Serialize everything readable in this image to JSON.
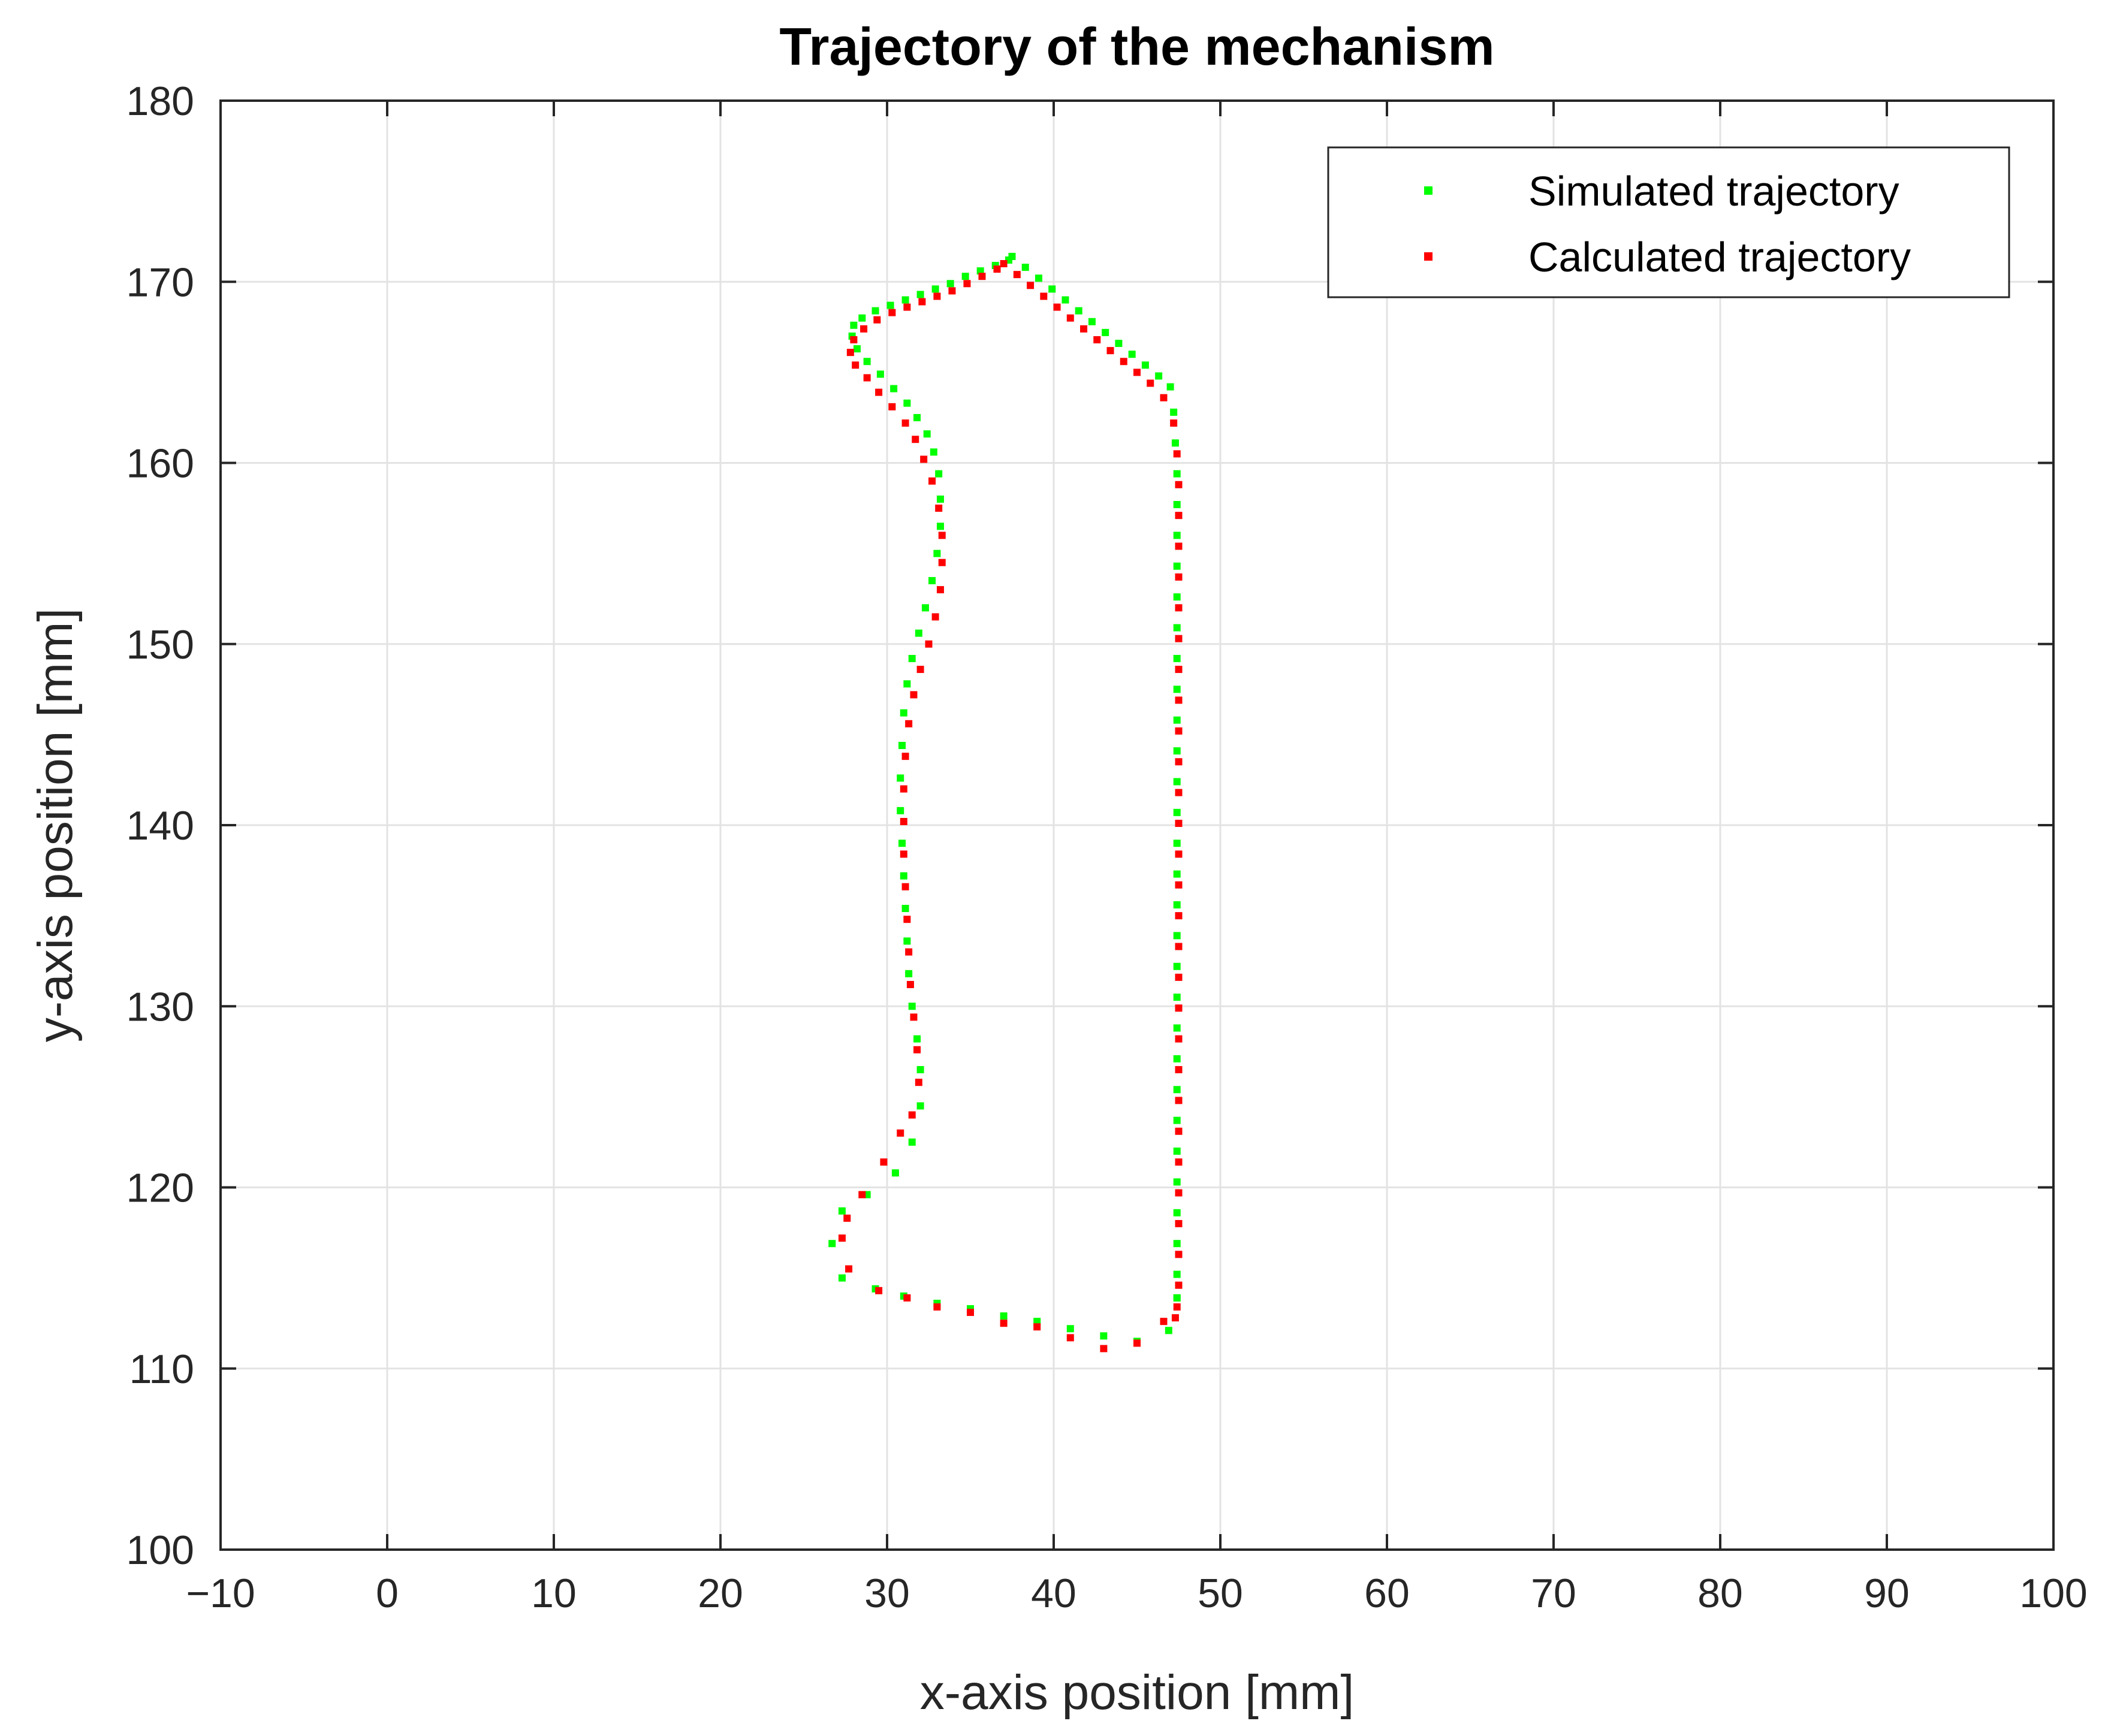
{
  "chart_data": {
    "type": "scatter",
    "title": "Trajectory of the mechanism",
    "xlabel": "x-axis position [mm]",
    "ylabel": "y-axis position [mm]",
    "xlim": [
      -10,
      100
    ],
    "ylim": [
      100,
      180
    ],
    "xticks": [
      -10,
      0,
      10,
      20,
      30,
      40,
      50,
      60,
      70,
      80,
      90,
      100
    ],
    "yticks": [
      100,
      110,
      120,
      130,
      140,
      150,
      160,
      170,
      180
    ],
    "xtick_labels": [
      "−10",
      "0",
      "10",
      "20",
      "30",
      "40",
      "50",
      "60",
      "70",
      "80",
      "90",
      "100"
    ],
    "ytick_labels": [
      "100",
      "110",
      "120",
      "130",
      "140",
      "150",
      "160",
      "170",
      "180"
    ],
    "grid": true,
    "legend_position": "top-right",
    "series": [
      {
        "name": "Simulated trajectory",
        "color": "#00ff00",
        "x": [
          37.5,
          38.3,
          39.1,
          39.9,
          40.7,
          41.5,
          42.3,
          43.1,
          43.9,
          44.7,
          45.5,
          46.3,
          47.0,
          47.2,
          47.3,
          47.4,
          47.4,
          47.4,
          47.4,
          47.4,
          47.4,
          47.4,
          47.4,
          47.4,
          47.4,
          47.4,
          47.4,
          47.4,
          47.4,
          47.4,
          47.4,
          47.4,
          47.4,
          47.4,
          47.4,
          47.4,
          47.4,
          47.4,
          47.4,
          47.4,
          47.4,
          47.4,
          47.4,
          47.4,
          46.9,
          45.0,
          43.0,
          41.0,
          39.0,
          37.0,
          35.0,
          33.0,
          31.0,
          29.3,
          27.3,
          26.7,
          27.3,
          28.8,
          30.5,
          31.5,
          32.0,
          32.0,
          31.8,
          31.5,
          31.3,
          31.2,
          31.1,
          31.0,
          30.9,
          30.8,
          30.8,
          30.9,
          31.0,
          31.2,
          31.5,
          31.9,
          32.3,
          32.7,
          33.0,
          33.2,
          33.2,
          33.1,
          32.8,
          32.4,
          31.8,
          31.2,
          30.4,
          29.6,
          28.8,
          28.2,
          27.9,
          28.0,
          28.5,
          29.3,
          30.2,
          31.1,
          32.0,
          32.9,
          33.8,
          34.7,
          35.6,
          36.5,
          37.3
        ],
        "y": [
          171.4,
          170.8,
          170.2,
          169.6,
          169.0,
          168.4,
          167.8,
          167.2,
          166.6,
          166.0,
          165.4,
          164.8,
          164.2,
          162.8,
          161.1,
          159.4,
          157.7,
          156.0,
          154.3,
          152.6,
          150.9,
          149.2,
          147.5,
          145.8,
          144.1,
          142.4,
          140.7,
          139.0,
          137.3,
          135.6,
          133.9,
          132.2,
          130.5,
          128.8,
          127.1,
          125.4,
          123.7,
          122.0,
          120.3,
          118.6,
          116.9,
          115.2,
          113.9,
          113.9,
          112.1,
          111.5,
          111.8,
          112.2,
          112.6,
          112.9,
          113.3,
          113.6,
          114.0,
          114.4,
          115.0,
          116.9,
          118.7,
          119.6,
          120.8,
          122.5,
          124.5,
          126.5,
          128.2,
          130.0,
          131.8,
          133.6,
          135.4,
          137.2,
          139.0,
          140.8,
          142.6,
          144.4,
          146.2,
          147.8,
          149.2,
          150.6,
          152.0,
          153.5,
          155.0,
          156.5,
          158.0,
          159.4,
          160.6,
          161.6,
          162.5,
          163.3,
          164.1,
          164.9,
          165.6,
          166.3,
          167.0,
          167.6,
          168.0,
          168.4,
          168.7,
          169.0,
          169.3,
          169.6,
          169.9,
          170.3,
          170.6,
          170.9,
          171.2
        ]
      },
      {
        "name": "Calculated trajectory",
        "color": "#ff0000",
        "x": [
          37.0,
          37.8,
          38.6,
          39.4,
          40.2,
          41.0,
          41.8,
          42.6,
          43.4,
          44.2,
          45.0,
          45.8,
          46.6,
          47.2,
          47.4,
          47.5,
          47.5,
          47.5,
          47.5,
          47.5,
          47.5,
          47.5,
          47.5,
          47.5,
          47.5,
          47.5,
          47.5,
          47.5,
          47.5,
          47.5,
          47.5,
          47.5,
          47.5,
          47.5,
          47.5,
          47.5,
          47.5,
          47.5,
          47.5,
          47.5,
          47.5,
          47.5,
          47.4,
          47.3,
          46.6,
          45.0,
          43.0,
          41.0,
          39.0,
          37.0,
          35.0,
          33.0,
          31.2,
          29.5,
          27.7,
          27.3,
          27.6,
          28.5,
          29.8,
          30.8,
          31.5,
          31.9,
          31.8,
          31.6,
          31.4,
          31.3,
          31.2,
          31.1,
          31.0,
          31.0,
          31.0,
          31.1,
          31.3,
          31.6,
          32.0,
          32.5,
          32.9,
          33.2,
          33.3,
          33.3,
          33.1,
          32.7,
          32.2,
          31.7,
          31.1,
          30.3,
          29.5,
          28.8,
          28.1,
          27.8,
          28.0,
          28.6,
          29.4,
          30.3,
          31.2,
          32.1,
          33.0,
          33.9,
          34.8,
          35.7,
          36.6
        ],
        "y": [
          171.0,
          170.4,
          169.8,
          169.2,
          168.6,
          168.0,
          167.4,
          166.8,
          166.2,
          165.6,
          165.0,
          164.4,
          163.6,
          162.2,
          160.5,
          158.8,
          157.1,
          155.4,
          153.7,
          152.0,
          150.3,
          148.6,
          146.9,
          145.2,
          143.5,
          141.8,
          140.1,
          138.4,
          136.7,
          135.0,
          133.3,
          131.6,
          129.9,
          128.2,
          126.5,
          124.8,
          123.1,
          121.4,
          119.7,
          118.0,
          116.3,
          114.6,
          113.4,
          112.8,
          112.6,
          111.4,
          111.1,
          111.7,
          112.3,
          112.5,
          113.1,
          113.4,
          113.9,
          114.3,
          115.5,
          117.2,
          118.3,
          119.6,
          121.4,
          123.0,
          124.0,
          125.8,
          127.6,
          129.4,
          131.2,
          133.0,
          134.8,
          136.6,
          138.4,
          140.2,
          142.0,
          143.8,
          145.6,
          147.2,
          148.6,
          150.0,
          151.5,
          153.0,
          154.5,
          156.0,
          157.5,
          159.0,
          160.2,
          161.3,
          162.2,
          163.1,
          163.9,
          164.7,
          165.4,
          166.1,
          166.8,
          167.4,
          167.9,
          168.3,
          168.6,
          168.9,
          169.2,
          169.5,
          169.9,
          170.3,
          170.7
        ]
      }
    ]
  }
}
